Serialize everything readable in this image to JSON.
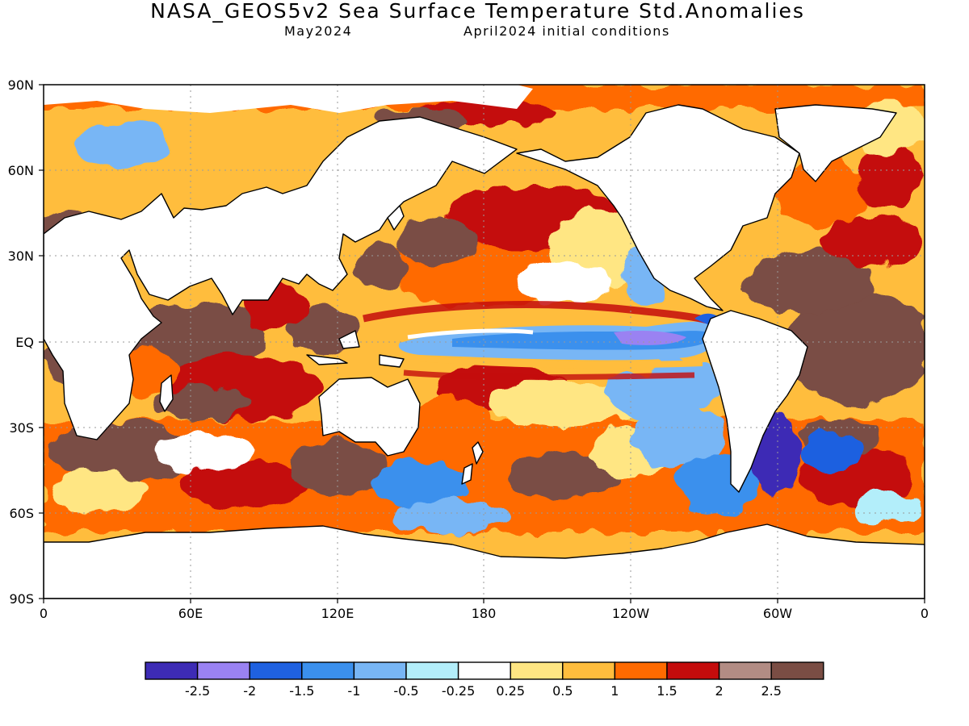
{
  "title": "NASA_GEOS5v2 Sea Surface Temperature Std.Anomalies",
  "subtitle_left": "May2024",
  "subtitle_right": "April2024 initial conditions",
  "map": {
    "lat_ticks": [
      "90N",
      "60N",
      "30N",
      "EQ",
      "30S",
      "60S",
      "90S"
    ],
    "lon_ticks": [
      "0",
      "60E",
      "120E",
      "180",
      "120W",
      "60W",
      "0"
    ]
  },
  "legend": {
    "colors": [
      "#3d2bb5",
      "#9a82f2",
      "#1f61e0",
      "#3b90ed",
      "#78b6f5",
      "#b3eefa",
      "#ffffff",
      "#ffe683",
      "#ffbd3d",
      "#ff6a00",
      "#c40c0c",
      "#b28c84",
      "#7a4d44"
    ],
    "labels": [
      "-2.5",
      "-2",
      "-1.5",
      "-1",
      "-0.5",
      "-0.25",
      "0.25",
      "0.5",
      "1",
      "1.5",
      "2",
      "2.5"
    ]
  }
}
